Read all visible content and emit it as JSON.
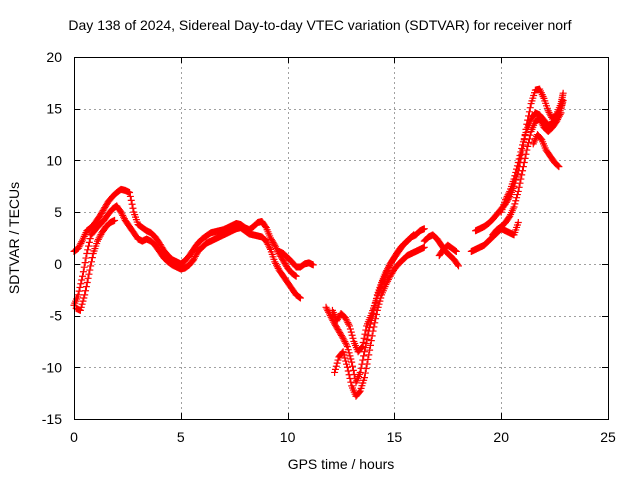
{
  "chart_data": {
    "type": "scatter",
    "title": "Day 138 of 2024, Sidereal Day-to-day VTEC variation (SDTVAR) for receiver norf",
    "xlabel": "GPS time / hours",
    "ylabel": "SDTVAR / TECUs",
    "xlim": [
      0,
      25
    ],
    "ylim": [
      -15,
      20
    ],
    "x_ticks": [
      0,
      5,
      10,
      15,
      20,
      25
    ],
    "y_ticks": [
      -15,
      -10,
      -5,
      0,
      5,
      10,
      15,
      20
    ],
    "grid": true,
    "marker": "+",
    "color": "#ff0000",
    "series": [
      {
        "values": [
          [
            0.0,
            1.2
          ],
          [
            0.2,
            1.5
          ],
          [
            0.4,
            2.3
          ],
          [
            0.6,
            3.2
          ],
          [
            0.8,
            3.5
          ],
          [
            1.0,
            4.0
          ],
          [
            1.2,
            4.6
          ],
          [
            1.4,
            5.3
          ],
          [
            1.6,
            6.0
          ],
          [
            1.8,
            6.5
          ],
          [
            2.0,
            6.9
          ],
          [
            2.2,
            7.2
          ],
          [
            2.4,
            7.1
          ],
          [
            2.6,
            6.9
          ],
          [
            2.8,
            5.0
          ],
          [
            3.0,
            3.8
          ],
          [
            3.2,
            3.5
          ],
          [
            3.4,
            3.2
          ],
          [
            3.6,
            3.0
          ],
          [
            3.8,
            2.6
          ],
          [
            4.0,
            2.0
          ],
          [
            4.2,
            1.3
          ],
          [
            4.4,
            0.8
          ],
          [
            4.6,
            0.4
          ],
          [
            4.8,
            0.2
          ],
          [
            5.0,
            0.0
          ],
          [
            5.2,
            0.3
          ],
          [
            5.4,
            0.8
          ],
          [
            5.6,
            1.4
          ],
          [
            5.8,
            2.0
          ],
          [
            6.0,
            2.4
          ],
          [
            6.2,
            2.7
          ],
          [
            6.4,
            3.0
          ],
          [
            6.6,
            3.1
          ],
          [
            6.8,
            3.2
          ],
          [
            7.0,
            3.3
          ],
          [
            7.2,
            3.5
          ],
          [
            7.4,
            3.7
          ],
          [
            7.6,
            3.9
          ],
          [
            7.8,
            3.8
          ],
          [
            8.0,
            3.5
          ],
          [
            8.2,
            3.3
          ],
          [
            8.4,
            3.6
          ],
          [
            8.6,
            4.0
          ],
          [
            8.8,
            4.1
          ],
          [
            9.0,
            3.5
          ],
          [
            9.2,
            2.5
          ],
          [
            9.4,
            1.8
          ],
          [
            9.6,
            1.0
          ],
          [
            9.8,
            0.3
          ],
          [
            10.0,
            -0.4
          ],
          [
            10.2,
            -0.9
          ],
          [
            10.4,
            -1.2
          ]
        ]
      },
      {
        "values": [
          [
            0.0,
            -4.0
          ],
          [
            0.2,
            -3.0
          ],
          [
            0.4,
            -1.2
          ],
          [
            0.6,
            1.0
          ],
          [
            0.8,
            2.8
          ],
          [
            1.0,
            3.3
          ],
          [
            1.2,
            3.8
          ],
          [
            1.4,
            4.2
          ],
          [
            1.6,
            4.8
          ],
          [
            1.8,
            5.3
          ],
          [
            2.0,
            5.6
          ],
          [
            2.2,
            5.0
          ],
          [
            2.4,
            4.2
          ],
          [
            2.6,
            3.6
          ],
          [
            2.8,
            3.0
          ],
          [
            3.0,
            2.4
          ],
          [
            3.2,
            2.2
          ],
          [
            3.4,
            2.4
          ],
          [
            3.6,
            2.2
          ],
          [
            3.8,
            1.8
          ],
          [
            4.0,
            1.2
          ],
          [
            4.2,
            0.6
          ],
          [
            4.4,
            0.2
          ],
          [
            4.6,
            -0.1
          ],
          [
            4.8,
            -0.3
          ],
          [
            5.0,
            -0.5
          ],
          [
            5.2,
            -0.4
          ],
          [
            5.4,
            -0.1
          ],
          [
            5.6,
            0.4
          ],
          [
            5.8,
            1.2
          ],
          [
            6.0,
            1.6
          ],
          [
            6.2,
            2.0
          ],
          [
            6.4,
            2.2
          ],
          [
            6.6,
            2.4
          ],
          [
            6.8,
            2.6
          ],
          [
            7.0,
            2.8
          ],
          [
            7.2,
            3.0
          ],
          [
            7.4,
            3.2
          ],
          [
            7.6,
            3.4
          ],
          [
            7.8,
            3.5
          ],
          [
            8.0,
            3.2
          ],
          [
            8.2,
            2.9
          ],
          [
            8.4,
            2.8
          ],
          [
            8.6,
            2.7
          ],
          [
            8.8,
            2.6
          ],
          [
            9.0,
            2.2
          ],
          [
            9.2,
            1.4
          ],
          [
            9.4,
            0.2
          ],
          [
            9.6,
            -0.6
          ],
          [
            9.8,
            -1.2
          ],
          [
            10.0,
            -1.8
          ],
          [
            10.2,
            -2.4
          ],
          [
            10.4,
            -3.0
          ],
          [
            10.6,
            -3.3
          ]
        ]
      },
      {
        "values": [
          [
            0.1,
            -4.3
          ],
          [
            0.3,
            -4.5
          ],
          [
            0.5,
            -3.0
          ],
          [
            0.7,
            -1.0
          ],
          [
            0.9,
            1.0
          ],
          [
            1.1,
            2.2
          ],
          [
            1.3,
            3.0
          ],
          [
            1.5,
            3.6
          ],
          [
            1.7,
            4.0
          ],
          [
            1.9,
            4.2
          ]
        ]
      },
      {
        "values": [
          [
            9.6,
            1.2
          ],
          [
            9.8,
            1.0
          ],
          [
            10.0,
            0.6
          ],
          [
            10.2,
            0.2
          ],
          [
            10.4,
            -0.3
          ],
          [
            10.6,
            -0.3
          ],
          [
            10.8,
            0.0
          ],
          [
            11.0,
            0.1
          ],
          [
            11.2,
            -0.1
          ]
        ]
      },
      {
        "values": [
          [
            11.8,
            -4.2
          ],
          [
            12.0,
            -5.0
          ],
          [
            12.2,
            -5.8
          ],
          [
            12.4,
            -6.5
          ],
          [
            12.6,
            -7.2
          ],
          [
            12.8,
            -8.0
          ],
          [
            13.0,
            -9.5
          ],
          [
            13.2,
            -11.5
          ],
          [
            13.4,
            -10.5
          ],
          [
            13.6,
            -8.5
          ],
          [
            13.8,
            -6.5
          ],
          [
            14.0,
            -4.8
          ],
          [
            14.2,
            -3.0
          ],
          [
            14.4,
            -1.8
          ],
          [
            14.6,
            -0.8
          ],
          [
            14.8,
            0.0
          ],
          [
            15.0,
            0.6
          ],
          [
            15.2,
            1.2
          ],
          [
            15.4,
            1.8
          ],
          [
            15.6,
            2.2
          ],
          [
            15.8,
            2.6
          ],
          [
            16.0,
            2.8
          ],
          [
            16.2,
            3.2
          ],
          [
            16.4,
            3.4
          ]
        ]
      },
      {
        "values": [
          [
            12.2,
            -10.5
          ],
          [
            12.4,
            -9.0
          ],
          [
            12.6,
            -8.5
          ],
          [
            12.8,
            -10.0
          ],
          [
            13.0,
            -11.8
          ],
          [
            13.2,
            -12.8
          ],
          [
            13.4,
            -12.3
          ],
          [
            13.6,
            -11.0
          ],
          [
            13.8,
            -8.8
          ],
          [
            14.0,
            -6.5
          ],
          [
            14.2,
            -4.5
          ],
          [
            14.4,
            -3.0
          ],
          [
            14.6,
            -2.0
          ],
          [
            14.8,
            -1.2
          ],
          [
            15.0,
            -0.5
          ],
          [
            15.2,
            0.0
          ],
          [
            15.4,
            0.4
          ],
          [
            15.6,
            0.8
          ],
          [
            15.8,
            1.0
          ],
          [
            16.0,
            1.2
          ],
          [
            16.2,
            1.4
          ],
          [
            16.4,
            1.6
          ]
        ]
      },
      {
        "values": [
          [
            12.1,
            -4.5
          ],
          [
            12.3,
            -5.5
          ],
          [
            12.5,
            -4.8
          ],
          [
            12.7,
            -5.2
          ],
          [
            12.9,
            -6.0
          ],
          [
            13.1,
            -7.5
          ],
          [
            13.3,
            -8.5
          ],
          [
            13.5,
            -8.0
          ],
          [
            13.7,
            -6.0
          ],
          [
            13.9,
            -5.0
          ],
          [
            14.1,
            -3.8
          ],
          [
            14.3,
            -2.6
          ],
          [
            14.5,
            -1.5
          ],
          [
            14.7,
            -0.5
          ],
          [
            14.9,
            0.3
          ],
          [
            15.1,
            1.0
          ],
          [
            15.3,
            1.6
          ],
          [
            15.5,
            2.0
          ],
          [
            15.7,
            2.4
          ],
          [
            15.9,
            2.8
          ]
        ]
      },
      {
        "values": [
          [
            16.4,
            2.2
          ],
          [
            16.6,
            2.6
          ],
          [
            16.8,
            2.8
          ],
          [
            17.0,
            2.4
          ],
          [
            17.2,
            1.8
          ],
          [
            17.4,
            1.2
          ],
          [
            17.6,
            0.8
          ],
          [
            17.8,
            0.4
          ],
          [
            18.0,
            -0.2
          ],
          [
            17.1,
            0.8
          ],
          [
            17.3,
            1.4
          ],
          [
            17.5,
            1.8
          ],
          [
            17.7,
            1.5
          ],
          [
            17.9,
            1.2
          ]
        ]
      },
      {
        "values": [
          [
            18.6,
            1.2
          ],
          [
            18.8,
            1.4
          ],
          [
            19.0,
            1.6
          ],
          [
            19.2,
            1.8
          ],
          [
            19.4,
            2.2
          ],
          [
            19.6,
            2.6
          ],
          [
            19.8,
            3.0
          ],
          [
            20.0,
            3.4
          ],
          [
            20.2,
            3.2
          ],
          [
            20.4,
            3.0
          ],
          [
            20.6,
            2.8
          ],
          [
            20.8,
            4.0
          ]
        ]
      },
      {
        "values": [
          [
            18.8,
            3.2
          ],
          [
            19.0,
            3.4
          ],
          [
            19.2,
            3.6
          ],
          [
            19.4,
            3.9
          ],
          [
            19.6,
            4.3
          ],
          [
            19.8,
            4.8
          ],
          [
            20.0,
            5.3
          ],
          [
            20.2,
            5.8
          ],
          [
            20.4,
            6.5
          ],
          [
            20.6,
            7.5
          ],
          [
            20.8,
            9.0
          ],
          [
            21.0,
            11.0
          ],
          [
            21.2,
            13.5
          ],
          [
            21.4,
            15.5
          ],
          [
            21.6,
            16.8
          ],
          [
            21.8,
            16.9
          ],
          [
            22.0,
            16.0
          ],
          [
            22.2,
            14.8
          ],
          [
            22.4,
            14.0
          ],
          [
            22.6,
            14.5
          ],
          [
            22.8,
            15.5
          ],
          [
            22.9,
            16.5
          ]
        ]
      },
      {
        "values": [
          [
            19.6,
            2.8
          ],
          [
            19.8,
            3.3
          ],
          [
            20.0,
            3.6
          ],
          [
            20.2,
            4.0
          ],
          [
            20.4,
            4.6
          ],
          [
            20.6,
            5.5
          ],
          [
            20.8,
            7.0
          ],
          [
            21.0,
            9.0
          ],
          [
            21.2,
            11.0
          ],
          [
            21.4,
            12.8
          ],
          [
            21.6,
            13.8
          ],
          [
            21.8,
            14.0
          ],
          [
            22.0,
            13.2
          ],
          [
            22.2,
            12.8
          ],
          [
            22.4,
            13.2
          ],
          [
            22.6,
            13.8
          ],
          [
            22.8,
            14.6
          ],
          [
            21.5,
            11.6
          ],
          [
            21.7,
            12.5
          ],
          [
            21.9,
            12.0
          ],
          [
            22.1,
            11.0
          ],
          [
            22.3,
            10.4
          ],
          [
            22.5,
            9.8
          ],
          [
            22.7,
            9.4
          ]
        ]
      },
      {
        "values": [
          [
            20.0,
            5.0
          ],
          [
            20.2,
            6.2
          ],
          [
            20.4,
            7.0
          ],
          [
            20.6,
            8.2
          ],
          [
            20.8,
            9.8
          ],
          [
            21.0,
            11.5
          ],
          [
            21.2,
            13.0
          ],
          [
            21.4,
            14.0
          ],
          [
            21.6,
            14.6
          ],
          [
            21.8,
            14.4
          ],
          [
            22.0,
            13.9
          ],
          [
            22.2,
            13.4
          ],
          [
            22.4,
            13.6
          ],
          [
            22.6,
            14.0
          ],
          [
            22.8,
            15.0
          ],
          [
            22.9,
            15.8
          ]
        ]
      }
    ]
  }
}
